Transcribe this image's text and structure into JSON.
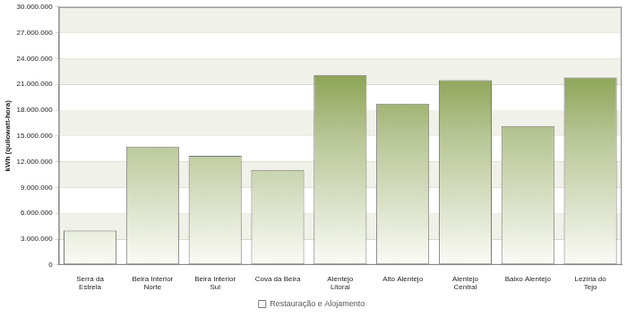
{
  "chart_data": {
    "type": "bar",
    "y_label": "kWh (quilowatt-hora)",
    "categories": [
      "Serra da Estrela",
      "Beira Interior Norte",
      "Beira Interior Sul",
      "Cova da Beira",
      "Alentejo Litoral",
      "Alto Alentejo",
      "Alentejo Central",
      "Baixo Alentejo",
      "Lezíria do Tejo"
    ],
    "series": [
      {
        "name": "Restauração e Alojamento",
        "color": "#5f7f12",
        "values": [
          4000000,
          13750000,
          12700000,
          11050000,
          22100000,
          18750000,
          21500000,
          16150000,
          21800000
        ]
      }
    ],
    "ylim": [
      0,
      30000000
    ],
    "yticks": [
      0,
      {
        "value": 3000000,
        "label": "3.000.000"
      },
      {
        "value": 6000000,
        "label": "6.000.000"
      },
      {
        "value": 9000000,
        "label": "9.000.000"
      },
      {
        "value": 12000000,
        "label": "12.000.000"
      },
      {
        "value": 15000000,
        "label": "15.000.000"
      },
      {
        "value": 18000000,
        "label": "18.000.000"
      },
      {
        "value": 21000000,
        "label": "21.000.000"
      },
      {
        "value": 24000000,
        "label": "24.000.000"
      },
      {
        "value": 27000000,
        "label": "27.000.000"
      },
      {
        "value": 30000000,
        "label": "30.000.000"
      }
    ],
    "grid": true,
    "legend": "bottom"
  }
}
